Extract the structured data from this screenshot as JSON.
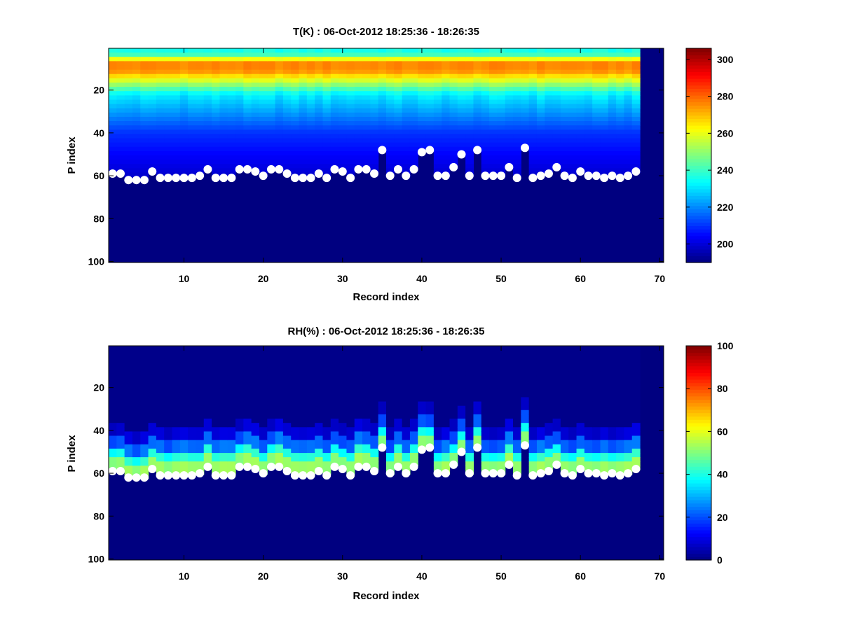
{
  "chart_data": [
    {
      "type": "heatmap",
      "title": "T(K) : 06-Oct-2012 18:25:36 - 18:26:35",
      "xlabel": "Record index",
      "ylabel": "P index",
      "xlim": [
        0.5,
        70.5
      ],
      "ylim": [
        0.5,
        100.5
      ],
      "y_reversed": true,
      "xticks": [
        10,
        20,
        30,
        40,
        50,
        60,
        70
      ],
      "yticks": [
        20,
        40,
        60,
        80,
        100
      ],
      "colorbar": {
        "min": 190,
        "max": 306,
        "ticks": [
          200,
          220,
          240,
          260,
          280,
          300
        ]
      },
      "field": "temperature",
      "fill_value": 190
    },
    {
      "type": "heatmap",
      "title": "RH(%) : 06-Oct-2012 18:25:36 - 18:26:35",
      "xlabel": "Record index",
      "ylabel": "P index",
      "xlim": [
        0.5,
        70.5
      ],
      "ylim": [
        0.5,
        100.5
      ],
      "y_reversed": true,
      "xticks": [
        10,
        20,
        30,
        40,
        50,
        60,
        70
      ],
      "yticks": [
        20,
        40,
        60,
        80,
        100
      ],
      "colorbar": {
        "min": 0,
        "max": 100,
        "ticks": [
          0,
          20,
          40,
          60,
          80,
          100
        ]
      },
      "field": "humidity",
      "fill_value": 0
    }
  ],
  "records": 67,
  "surface_p_index": [
    59,
    59,
    62,
    62,
    62,
    58,
    61,
    61,
    61,
    61,
    61,
    60,
    57,
    61,
    61,
    61,
    57,
    57,
    58,
    60,
    57,
    57,
    59,
    61,
    61,
    61,
    59,
    61,
    57,
    58,
    61,
    57,
    57,
    59,
    48,
    60,
    57,
    60,
    57,
    49,
    48,
    60,
    60,
    56,
    50,
    60,
    48,
    60,
    60,
    60,
    56,
    61,
    47,
    61,
    60,
    59,
    56,
    60,
    61,
    58,
    60,
    60,
    61,
    60,
    61,
    60,
    58
  ],
  "marker_color": "#ffffff",
  "colormap": "jet"
}
